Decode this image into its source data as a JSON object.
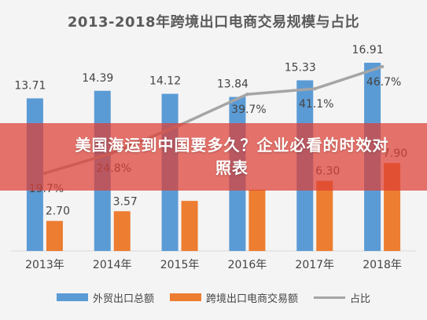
{
  "page": {
    "banner_text": "美国海运到中国要多久？企业必看的时效对照表"
  },
  "colors": {
    "bar_total": "#5b9bd5",
    "bar_ecom": "#ed7d31",
    "line_ratio": "#a5a5a5",
    "text": "#444444",
    "title": "#5b5b5b",
    "banner": "#de3e34"
  },
  "chart_data": {
    "type": "bar",
    "title": "2013-2018年跨境出口电商交易规模与占比",
    "categories": [
      "2013年",
      "2014年",
      "2015年",
      "2016年",
      "2017年",
      "2018年"
    ],
    "series": [
      {
        "name": "外贸出口总额",
        "type": "bar",
        "values": [
          13.71,
          14.39,
          14.12,
          13.84,
          15.33,
          16.91
        ],
        "labels": [
          "13.71",
          "14.39",
          "14.12",
          "13.84",
          "15.33",
          "16.91"
        ]
      },
      {
        "name": "跨境出口电商交易额",
        "type": "bar",
        "values": [
          2.7,
          3.57,
          4.5,
          5.5,
          6.3,
          7.9
        ],
        "labels": [
          "2.70",
          "3.57",
          "",
          "",
          "6.30",
          "7.90"
        ]
      },
      {
        "name": "占比",
        "type": "line",
        "values": [
          19.7,
          24.8,
          31.9,
          39.7,
          41.1,
          46.7
        ],
        "labels": [
          "19.7%",
          "24.8%",
          "",
          "39.7%",
          "41.1%",
          "46.7%"
        ]
      }
    ],
    "ylim": [
      0,
      17.5
    ],
    "ratio_ylim": [
      0,
      50
    ],
    "grid": false,
    "legend_position": "bottom"
  }
}
